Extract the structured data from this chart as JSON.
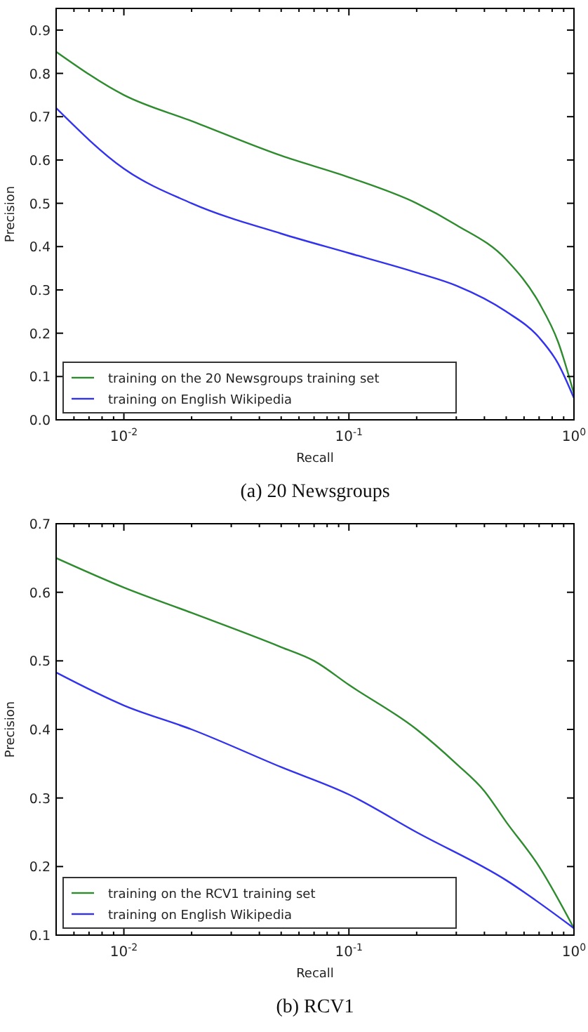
{
  "chart_data": [
    {
      "type": "line",
      "title": "(a) 20 Newsgroups",
      "xlabel": "Recall",
      "ylabel": "Precision",
      "log": "x",
      "xlim": [
        0.005,
        1
      ],
      "ylim": [
        0,
        0.95
      ],
      "xticks": [
        {
          "value": 0.005,
          "label": null
        },
        {
          "value": 0.006,
          "label": null
        },
        {
          "value": 0.007,
          "label": null
        },
        {
          "value": 0.008,
          "label": null
        },
        {
          "value": 0.009,
          "label": null
        },
        {
          "value": 0.01,
          "label": "10$^{-2}$"
        },
        {
          "value": 0.02,
          "label": null
        },
        {
          "value": 0.03,
          "label": null
        },
        {
          "value": 0.04,
          "label": null
        },
        {
          "value": 0.05,
          "label": null
        },
        {
          "value": 0.06,
          "label": null
        },
        {
          "value": 0.07,
          "label": null
        },
        {
          "value": 0.08,
          "label": null
        },
        {
          "value": 0.09,
          "label": null
        },
        {
          "value": 0.1,
          "label": "10$^{-1}$"
        },
        {
          "value": 0.2,
          "label": null
        },
        {
          "value": 0.3,
          "label": null
        },
        {
          "value": 0.4,
          "label": null
        },
        {
          "value": 0.5,
          "label": null
        },
        {
          "value": 0.6,
          "label": null
        },
        {
          "value": 0.7,
          "label": null
        },
        {
          "value": 0.8,
          "label": null
        },
        {
          "value": 0.9,
          "label": null
        },
        {
          "value": 1,
          "label": "10$^{0}$"
        }
      ],
      "yticks": [
        {
          "value": 0,
          "label": "0.0"
        },
        0.1,
        0.2,
        0.3,
        0.4,
        0.5,
        0.6,
        0.7,
        0.8,
        0.9
      ],
      "legend": "bottom left",
      "grid": false,
      "series": [
        {
          "name": "training on the 20 Newsgroups training set",
          "color": "#2e8b2e",
          "x": [
            0.005,
            0.01,
            0.02,
            0.05,
            0.1,
            0.2,
            0.3,
            0.5,
            0.7,
            0.85,
            1
          ],
          "values": [
            0.85,
            0.75,
            0.69,
            0.61,
            0.56,
            0.5,
            0.45,
            0.37,
            0.27,
            0.18,
            0.06
          ]
        },
        {
          "name": "training on English Wikipedia",
          "color": "#3333ee",
          "x": [
            0.005,
            0.01,
            0.02,
            0.05,
            0.1,
            0.2,
            0.3,
            0.5,
            0.7,
            0.85,
            1
          ],
          "values": [
            0.72,
            0.58,
            0.5,
            0.43,
            0.385,
            0.34,
            0.31,
            0.25,
            0.19,
            0.13,
            0.05
          ]
        }
      ]
    },
    {
      "type": "line",
      "title": "(b) RCV1",
      "xlabel": "Recall",
      "ylabel": "Precision",
      "log": "x",
      "xlim": [
        0.005,
        1
      ],
      "ylim": [
        0.1,
        0.7
      ],
      "xticks": [
        {
          "value": 0.005,
          "label": null
        },
        {
          "value": 0.006,
          "label": null
        },
        {
          "value": 0.007,
          "label": null
        },
        {
          "value": 0.008,
          "label": null
        },
        {
          "value": 0.009,
          "label": null
        },
        {
          "value": 0.01,
          "label": "10$^{-2}$"
        },
        {
          "value": 0.02,
          "label": null
        },
        {
          "value": 0.03,
          "label": null
        },
        {
          "value": 0.04,
          "label": null
        },
        {
          "value": 0.05,
          "label": null
        },
        {
          "value": 0.06,
          "label": null
        },
        {
          "value": 0.07,
          "label": null
        },
        {
          "value": 0.08,
          "label": null
        },
        {
          "value": 0.09,
          "label": null
        },
        {
          "value": 0.1,
          "label": "10$^{-1}$"
        },
        {
          "value": 0.2,
          "label": null
        },
        {
          "value": 0.3,
          "label": null
        },
        {
          "value": 0.4,
          "label": null
        },
        {
          "value": 0.5,
          "label": null
        },
        {
          "value": 0.6,
          "label": null
        },
        {
          "value": 0.7,
          "label": null
        },
        {
          "value": 0.8,
          "label": null
        },
        {
          "value": 0.9,
          "label": null
        },
        {
          "value": 1,
          "label": "10$^{0}$"
        }
      ],
      "yticks": [
        0.1,
        0.2,
        0.3,
        0.4,
        0.5,
        0.6,
        0.7
      ],
      "legend": "bottom left",
      "grid": false,
      "series": [
        {
          "name": "training on the RCV1 training set",
          "color": "#2e8b2e",
          "x": [
            0.005,
            0.01,
            0.02,
            0.05,
            0.07,
            0.1,
            0.2,
            0.3,
            0.4,
            0.5,
            0.7,
            1
          ],
          "values": [
            0.65,
            0.607,
            0.57,
            0.52,
            0.5,
            0.465,
            0.4,
            0.35,
            0.31,
            0.265,
            0.2,
            0.11
          ]
        },
        {
          "name": "training on English Wikipedia",
          "color": "#3333ee",
          "x": [
            0.005,
            0.01,
            0.02,
            0.05,
            0.1,
            0.2,
            0.5,
            1
          ],
          "values": [
            0.483,
            0.435,
            0.4,
            0.345,
            0.305,
            0.25,
            0.18,
            0.11
          ]
        }
      ]
    }
  ]
}
